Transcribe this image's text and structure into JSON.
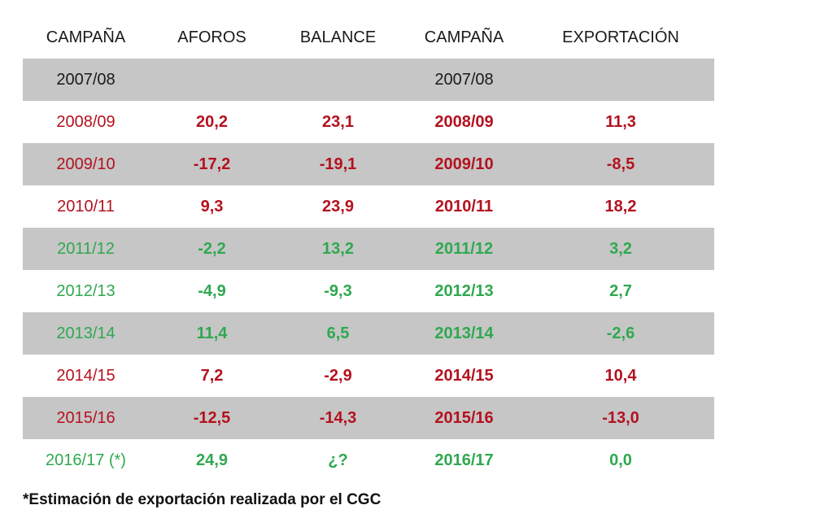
{
  "headers": [
    "CAMPAÑA",
    "AFOROS",
    "BALANCE",
    "CAMPAÑA",
    "EXPORTACIÓN"
  ],
  "colors": {
    "red": "#b3121f",
    "green": "#2fa84f",
    "shade": "#c6c6c6"
  },
  "rows": [
    {
      "campana": "2007/08",
      "aforos": "",
      "balance": "",
      "campana2": "2007/08",
      "exportacion": "",
      "tone": "base",
      "shaded": true
    },
    {
      "campana": "2008/09",
      "aforos": "20,2",
      "balance": "23,1",
      "campana2": "2008/09",
      "exportacion": "11,3",
      "tone": "red",
      "shaded": false
    },
    {
      "campana": "2009/10",
      "aforos": "-17,2",
      "balance": "-19,1",
      "campana2": "2009/10",
      "exportacion": "-8,5",
      "tone": "red",
      "shaded": true
    },
    {
      "campana": "2010/11",
      "aforos": "9,3",
      "balance": "23,9",
      "campana2": "2010/11",
      "exportacion": "18,2",
      "tone": "red",
      "shaded": false
    },
    {
      "campana": "2011/12",
      "aforos": "-2,2",
      "balance": "13,2",
      "campana2": "2011/12",
      "exportacion": "3,2",
      "tone": "green",
      "shaded": true
    },
    {
      "campana": "2012/13",
      "aforos": "-4,9",
      "balance": "-9,3",
      "campana2": "2012/13",
      "exportacion": "2,7",
      "tone": "green",
      "shaded": false
    },
    {
      "campana": "2013/14",
      "aforos": "11,4",
      "balance": "6,5",
      "campana2": "2013/14",
      "exportacion": "-2,6",
      "tone": "green",
      "shaded": true
    },
    {
      "campana": "2014/15",
      "aforos": "7,2",
      "balance": "-2,9",
      "campana2": "2014/15",
      "exportacion": "10,4",
      "tone": "red",
      "shaded": false
    },
    {
      "campana": "2015/16",
      "aforos": "-12,5",
      "balance": "-14,3",
      "campana2": "2015/16",
      "exportacion": "-13,0",
      "tone": "red",
      "shaded": true
    },
    {
      "campana": "2016/17 (*)",
      "aforos": "24,9",
      "balance": "¿?",
      "campana2": "2016/17",
      "exportacion": "0,0",
      "tone": "green",
      "shaded": false
    }
  ],
  "footnote": "*Estimación de exportación realizada por el CGC"
}
